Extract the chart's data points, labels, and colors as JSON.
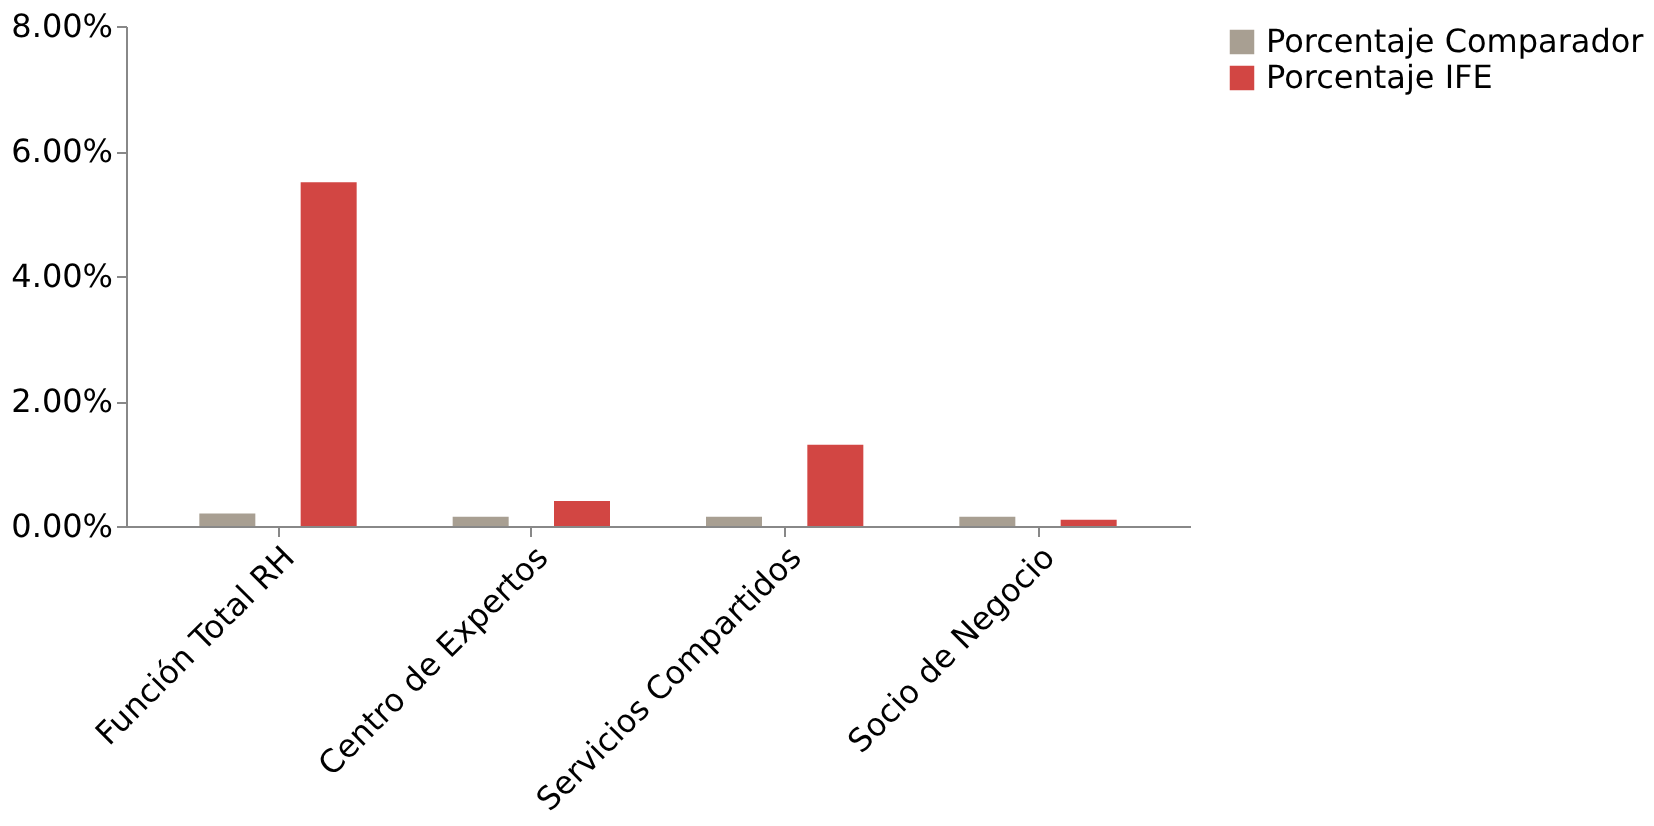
{
  "chart_data": {
    "type": "bar",
    "categories": [
      "Función Total RH",
      "Centro de Expertos",
      "Servicios Compartidos",
      "Socio de Negocio"
    ],
    "series": [
      {
        "name": "Porcentaje Comparador",
        "color": "#a89f92",
        "values": [
          0.2,
          0.15,
          0.15,
          0.15
        ]
      },
      {
        "name": "Porcentaje IFE",
        "color": "#d24643",
        "values": [
          5.5,
          0.4,
          1.3,
          0.1
        ]
      }
    ],
    "ylim": [
      0,
      8
    ],
    "yticks": [
      {
        "value": 0,
        "label": "0.00%"
      },
      {
        "value": 2,
        "label": "2.00%"
      },
      {
        "value": 4,
        "label": "4.00%"
      },
      {
        "value": 6,
        "label": "6.00%"
      },
      {
        "value": 8,
        "label": "8.00%"
      }
    ],
    "grid": false,
    "legend": "right"
  }
}
